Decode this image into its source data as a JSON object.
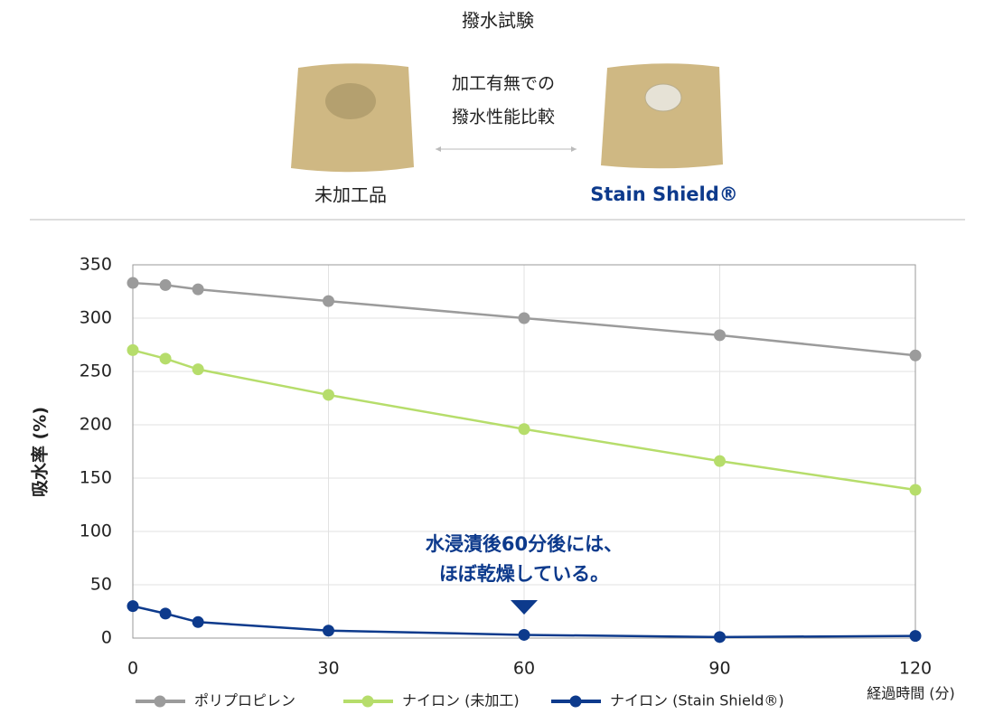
{
  "header": {
    "title": "撥水試験",
    "center_lines": [
      "加工有無での",
      "撥水性能比較"
    ],
    "left_label": "未加工品",
    "right_label": "Stain Shield®"
  },
  "chart_data": {
    "type": "line",
    "y_label": "吸水率 (%)",
    "x_label": "経過時間 (分)",
    "x": [
      0,
      5,
      10,
      30,
      60,
      90,
      120
    ],
    "xlim": [
      0,
      120
    ],
    "xticks": [
      0,
      30,
      60,
      90,
      120
    ],
    "ylim": [
      0,
      350
    ],
    "yticks": [
      0,
      50,
      100,
      150,
      200,
      250,
      300,
      350
    ],
    "grid": true,
    "series": [
      {
        "name": "ポリプロピレン",
        "color": "#9b9b9b",
        "values": [
          333,
          331,
          327,
          316,
          300,
          284,
          265
        ]
      },
      {
        "name": "ナイロン (未加工)",
        "color": "#b6dd6b",
        "values": [
          270,
          262,
          252,
          228,
          196,
          166,
          139
        ]
      },
      {
        "name": "ナイロン (Stain Shield®)",
        "color": "#0d3a8c",
        "values": [
          30,
          23,
          15,
          7,
          3,
          1,
          2
        ]
      }
    ],
    "annotation": {
      "lines": [
        "水浸漬後60分後には、",
        "ほぼ乾燥している。"
      ],
      "x": 60
    }
  }
}
